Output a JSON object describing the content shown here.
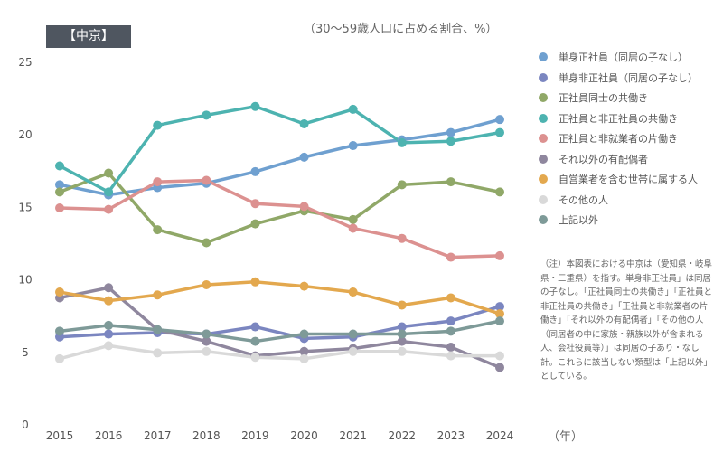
{
  "tag": "【中京】",
  "note": "（注）本図表における中京は（愛知県・岐阜県・三重県）を指す。単身非正社員」は同居の子なし。「正社員同士の共働き」「正社員と非正社員の共働き」「正社員と非就業者の片働き」「それ以外の有配偶者」「その他の人（同居者の中に家族・親族以外が含まれる人、会社役員等）」は同居の子あり・なし計。これらに該当しない類型は「上記以外」としている。",
  "chart_data": {
    "type": "line",
    "title": "",
    "subtitle": "（30〜59歳人口に占める割合、%）",
    "xlabel": "（年）",
    "ylabel": "",
    "ylim": [
      0,
      25
    ],
    "yticks": [
      0,
      5,
      10,
      15,
      20,
      25
    ],
    "grid": false,
    "legend_position": "right",
    "x": [
      "2015",
      "2016",
      "2017",
      "2018",
      "2019",
      "2020",
      "2021",
      "2022",
      "2023",
      "2024"
    ],
    "series": [
      {
        "name": "単身正社員（同居の子なし）",
        "color": "#6fa0d0",
        "values": [
          16.5,
          15.8,
          16.3,
          16.6,
          17.4,
          18.4,
          19.2,
          19.6,
          20.1,
          21.0
        ]
      },
      {
        "name": "単身非正社員（同居の子なし）",
        "color": "#7b86c0",
        "values": [
          6.0,
          6.2,
          6.3,
          6.2,
          6.7,
          5.9,
          6.0,
          6.7,
          7.1,
          8.1
        ]
      },
      {
        "name": "正社員同士の共働き",
        "color": "#90a868",
        "values": [
          16.0,
          17.3,
          13.4,
          12.5,
          13.8,
          14.7,
          14.1,
          16.5,
          16.7,
          16.0
        ]
      },
      {
        "name": "正社員と非正社員の共働き",
        "color": "#4db3b0",
        "values": [
          17.8,
          16.0,
          20.6,
          21.3,
          21.9,
          20.7,
          21.7,
          19.4,
          19.5,
          20.1
        ]
      },
      {
        "name": "正社員と非就業者の片働き",
        "color": "#dc9190",
        "values": [
          14.9,
          14.8,
          16.7,
          16.8,
          15.2,
          15.0,
          13.5,
          12.8,
          11.5,
          11.6
        ]
      },
      {
        "name": "それ以外の有配偶者",
        "color": "#8f879e",
        "values": [
          8.7,
          9.4,
          6.5,
          5.7,
          4.7,
          5.0,
          5.2,
          5.7,
          5.3,
          3.9
        ]
      },
      {
        "name": "自営業者を含む世帯に属する人",
        "color": "#e3a84e",
        "values": [
          9.1,
          8.5,
          8.9,
          9.6,
          9.8,
          9.5,
          9.1,
          8.2,
          8.7,
          7.6
        ]
      },
      {
        "name": "その他の人",
        "color": "#d9d9d9",
        "values": [
          4.5,
          5.4,
          4.9,
          5.0,
          4.6,
          4.5,
          5.0,
          5.0,
          4.7,
          4.7
        ]
      },
      {
        "name": "上記以外",
        "color": "#7e9a98",
        "values": [
          6.4,
          6.8,
          6.5,
          6.2,
          5.7,
          6.2,
          6.2,
          6.2,
          6.4,
          7.1
        ]
      }
    ]
  }
}
